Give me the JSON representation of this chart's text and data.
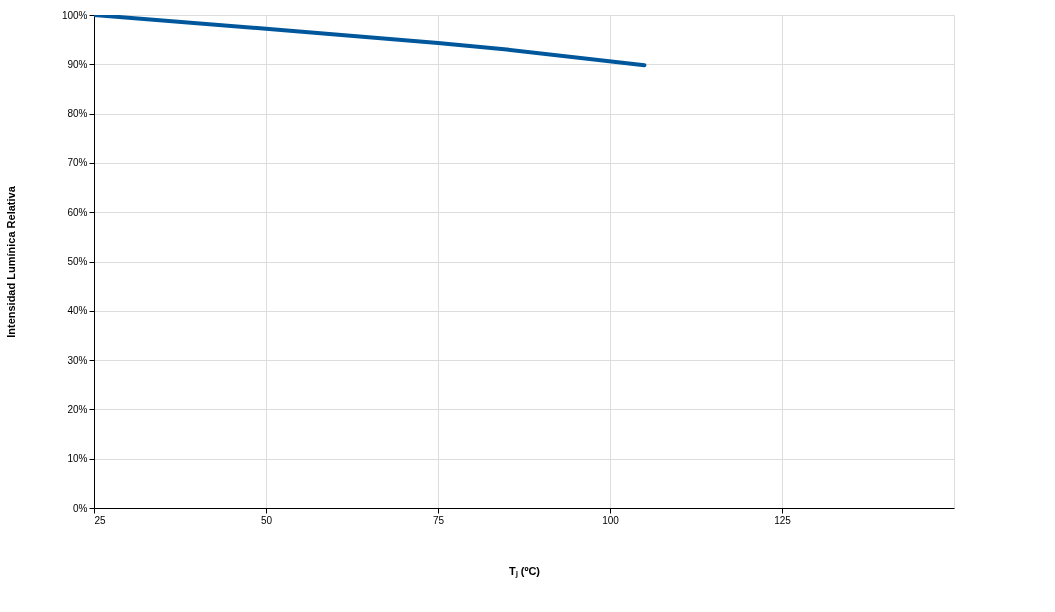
{
  "chart_data": {
    "type": "line",
    "xlabel": "Tⱼ (ºC)",
    "ylabel": "Intensidad Lumínica Relativa",
    "x": [
      25,
      50,
      75,
      85,
      105
    ],
    "series": [
      {
        "color": "#00579c",
        "values": [
          100,
          97.2,
          94.3,
          93.0,
          89.8
        ]
      }
    ],
    "xlim": [
      25,
      150
    ],
    "xticks": [
      25,
      50,
      75,
      100,
      125
    ],
    "ylim": [
      0,
      100
    ],
    "yticks": [
      {
        "value": 0,
        "label": "0%"
      },
      {
        "value": 10,
        "label": "10%"
      },
      {
        "value": 20,
        "label": "20%"
      },
      {
        "value": 30,
        "label": "30%"
      },
      {
        "value": 40,
        "label": "40%"
      },
      {
        "value": 50,
        "label": "50%"
      },
      {
        "value": 60,
        "label": "60%"
      },
      {
        "value": 70,
        "label": "70%"
      },
      {
        "value": 80,
        "label": "80%"
      },
      {
        "value": 90,
        "label": "90%"
      },
      {
        "value": 100,
        "label": "100%"
      }
    ],
    "grid": true,
    "marker": "none",
    "line_style": "solid"
  }
}
